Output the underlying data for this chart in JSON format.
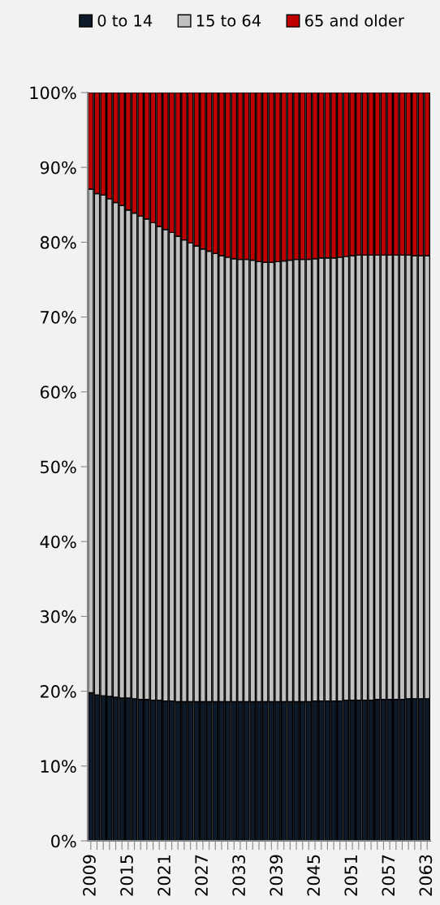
{
  "chart_data": {
    "type": "bar",
    "stacked": true,
    "categories": [
      "2009",
      null,
      null,
      null,
      null,
      null,
      "2015",
      null,
      null,
      null,
      null,
      null,
      "2021",
      null,
      null,
      null,
      null,
      null,
      "2027",
      null,
      null,
      null,
      null,
      null,
      "2033",
      null,
      null,
      null,
      null,
      null,
      "2039",
      null,
      null,
      null,
      null,
      null,
      "2045",
      null,
      null,
      null,
      null,
      null,
      "2051",
      null,
      null,
      null,
      null,
      null,
      "2057",
      null,
      null,
      null,
      null,
      null,
      "2063"
    ],
    "series": [
      {
        "name": "0 to 14",
        "color": "#0d1a2a",
        "values": [
          19.8,
          19.5,
          19.4,
          19.3,
          19.2,
          19.1,
          19.1,
          19.0,
          18.9,
          18.9,
          18.8,
          18.8,
          18.7,
          18.7,
          18.6,
          18.6,
          18.6,
          18.6,
          18.6,
          18.6,
          18.6,
          18.6,
          18.6,
          18.6,
          18.6,
          18.6,
          18.6,
          18.6,
          18.6,
          18.6,
          18.6,
          18.6,
          18.6,
          18.6,
          18.6,
          18.6,
          18.7,
          18.7,
          18.7,
          18.7,
          18.7,
          18.8,
          18.8,
          18.8,
          18.8,
          18.8,
          18.9,
          18.9,
          18.9,
          18.9,
          18.9,
          19.0,
          19.0,
          19.0,
          19.0
        ]
      },
      {
        "name": "15 to 64",
        "color": "#c0c0c0",
        "values": [
          67.3,
          67.0,
          66.9,
          66.5,
          66.1,
          65.8,
          65.2,
          64.9,
          64.6,
          64.2,
          63.8,
          63.3,
          63.0,
          62.6,
          62.2,
          61.7,
          61.3,
          60.9,
          60.5,
          60.2,
          59.9,
          59.6,
          59.4,
          59.2,
          59.1,
          59.1,
          59.0,
          58.8,
          58.7,
          58.7,
          58.8,
          58.9,
          59.0,
          59.1,
          59.1,
          59.1,
          59.1,
          59.2,
          59.2,
          59.2,
          59.3,
          59.3,
          59.4,
          59.5,
          59.5,
          59.5,
          59.4,
          59.4,
          59.4,
          59.4,
          59.4,
          59.3,
          59.2,
          59.2,
          59.2
        ]
      },
      {
        "name": "65 and older",
        "color": "#c00000",
        "values": [
          12.9,
          13.5,
          13.7,
          14.2,
          14.7,
          15.1,
          15.7,
          16.1,
          16.5,
          16.9,
          17.4,
          17.9,
          18.3,
          18.7,
          19.2,
          19.7,
          20.1,
          20.5,
          20.9,
          21.2,
          21.5,
          21.8,
          22.0,
          22.2,
          22.3,
          22.3,
          22.4,
          22.6,
          22.7,
          22.7,
          22.6,
          22.5,
          22.4,
          22.3,
          22.3,
          22.3,
          22.2,
          22.1,
          22.1,
          22.1,
          22.0,
          21.9,
          21.8,
          21.7,
          21.7,
          21.7,
          21.7,
          21.7,
          21.7,
          21.7,
          21.7,
          21.7,
          21.8,
          21.8,
          21.8
        ]
      }
    ],
    "ylim": [
      0,
      100
    ],
    "yticks": [
      {
        "value": 0,
        "label": "0%"
      },
      {
        "value": 10,
        "label": "10%"
      },
      {
        "value": 20,
        "label": "20%"
      },
      {
        "value": 30,
        "label": "30%"
      },
      {
        "value": 40,
        "label": "40%"
      },
      {
        "value": 50,
        "label": "50%"
      },
      {
        "value": 60,
        "label": "60%"
      },
      {
        "value": 70,
        "label": "70%"
      },
      {
        "value": 80,
        "label": "80%"
      },
      {
        "value": 90,
        "label": "90%"
      },
      {
        "value": 100,
        "label": "100%"
      }
    ],
    "grid": false,
    "legend": "top"
  }
}
